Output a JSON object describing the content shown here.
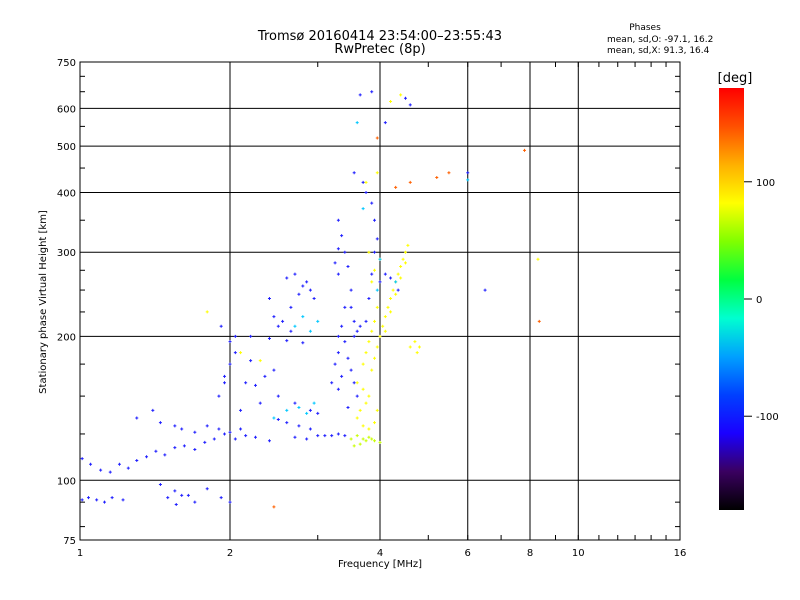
{
  "chart_data": {
    "type": "scatter",
    "title": "Tromsø 20160414 23:54:00–23:55:43",
    "subtitle": "RwPretec (8p)",
    "xlabel": "Frequency [MHz]",
    "ylabel": "Stationary phase Virtual Height [km]",
    "x_scale": "log",
    "y_scale": "log",
    "xlim": [
      1,
      16
    ],
    "ylim": [
      75,
      750
    ],
    "x_ticks": [
      1,
      2,
      4,
      6,
      8,
      10,
      16
    ],
    "x_tick_labels": [
      "1",
      "2",
      "4",
      "6",
      "8",
      "10",
      "16"
    ],
    "y_ticks": [
      75,
      100,
      200,
      300,
      400,
      500,
      600,
      750
    ],
    "y_tick_labels": [
      "75",
      "100",
      "200",
      "300",
      "400",
      "500",
      "600",
      "750"
    ],
    "grid": true,
    "legend": {
      "title": "Phases",
      "lines": [
        "mean, sd,O: -97.1, 16.2",
        "mean, sd,X:  91.3, 16.4"
      ],
      "placement": "top-right"
    },
    "colorbar": {
      "label": "[deg]",
      "range": [
        -180,
        180
      ],
      "ticks": [
        100,
        0,
        -100
      ],
      "tick_labels": [
        "100",
        "0",
        "-100"
      ],
      "stops": [
        "#000000",
        "#3a0060",
        "#1a00ff",
        "#0040ff",
        "#00a0ff",
        "#00ffd0",
        "#00ff40",
        "#80ff00",
        "#ffff00",
        "#ffb000",
        "#ff5000",
        "#ff0000"
      ]
    },
    "series": [
      {
        "color": "#2020ff",
        "points": [
          [
            1.01,
            91
          ],
          [
            1.04,
            92
          ],
          [
            1.08,
            91
          ],
          [
            1.12,
            90
          ],
          [
            1.16,
            92
          ],
          [
            1.22,
            91
          ],
          [
            1.5,
            92
          ],
          [
            1.56,
            89
          ],
          [
            1.6,
            93
          ],
          [
            1.7,
            90
          ],
          [
            1.01,
            111
          ],
          [
            1.05,
            108
          ],
          [
            1.1,
            105
          ],
          [
            1.15,
            104
          ],
          [
            1.2,
            108
          ],
          [
            1.25,
            106
          ],
          [
            1.3,
            110
          ],
          [
            1.36,
            112
          ],
          [
            1.42,
            115
          ],
          [
            1.48,
            113
          ],
          [
            1.55,
            117
          ],
          [
            1.62,
            118
          ],
          [
            1.7,
            116
          ],
          [
            1.78,
            120
          ],
          [
            1.86,
            122
          ],
          [
            1.95,
            125
          ],
          [
            2.05,
            122
          ],
          [
            2.15,
            124
          ],
          [
            2.25,
            123
          ],
          [
            2.4,
            121
          ],
          [
            1.3,
            135
          ],
          [
            1.4,
            140
          ],
          [
            1.45,
            132
          ],
          [
            1.55,
            130
          ],
          [
            1.6,
            128
          ],
          [
            1.7,
            126
          ],
          [
            1.8,
            130
          ],
          [
            1.9,
            128
          ],
          [
            2.0,
            126
          ],
          [
            2.1,
            128
          ],
          [
            1.9,
            150
          ],
          [
            1.95,
            165
          ],
          [
            2.0,
            175
          ],
          [
            2.05,
            185
          ],
          [
            2.0,
            195
          ],
          [
            1.92,
            210
          ],
          [
            1.95,
            160
          ],
          [
            2.1,
            140
          ],
          [
            2.15,
            160
          ],
          [
            2.2,
            178
          ],
          [
            2.05,
            200
          ],
          [
            2.2,
            200
          ],
          [
            2.4,
            198
          ],
          [
            2.6,
            196
          ],
          [
            2.8,
            194
          ],
          [
            2.5,
            150
          ],
          [
            2.7,
            145
          ],
          [
            2.9,
            140
          ],
          [
            3.0,
            138
          ],
          [
            2.5,
            134
          ],
          [
            2.6,
            132
          ],
          [
            2.75,
            130
          ],
          [
            2.9,
            128
          ],
          [
            2.55,
            215
          ],
          [
            2.65,
            230
          ],
          [
            2.75,
            245
          ],
          [
            2.85,
            260
          ],
          [
            2.9,
            250
          ],
          [
            2.45,
            220
          ],
          [
            2.4,
            240
          ],
          [
            2.6,
            265
          ],
          [
            2.7,
            270
          ],
          [
            2.8,
            255
          ],
          [
            2.95,
            240
          ],
          [
            2.5,
            210
          ],
          [
            2.65,
            205
          ],
          [
            2.25,
            158
          ],
          [
            2.35,
            165
          ],
          [
            2.45,
            170
          ],
          [
            2.3,
            145
          ],
          [
            3.1,
            124
          ],
          [
            3.2,
            124
          ],
          [
            3.3,
            125
          ],
          [
            3.4,
            124
          ],
          [
            3.0,
            124
          ],
          [
            2.85,
            122
          ],
          [
            2.7,
            123
          ],
          [
            3.2,
            160
          ],
          [
            3.3,
            155
          ],
          [
            3.35,
            165
          ],
          [
            3.25,
            175
          ],
          [
            3.3,
            185
          ],
          [
            3.3,
            200
          ],
          [
            3.35,
            210
          ],
          [
            3.4,
            230
          ],
          [
            3.3,
            270
          ],
          [
            3.25,
            285
          ],
          [
            3.3,
            305
          ],
          [
            3.35,
            325
          ],
          [
            3.3,
            350
          ],
          [
            3.4,
            300
          ],
          [
            3.45,
            280
          ],
          [
            3.5,
            250
          ],
          [
            3.5,
            230
          ],
          [
            3.55,
            215
          ],
          [
            3.4,
            195
          ],
          [
            3.45,
            180
          ],
          [
            3.5,
            170
          ],
          [
            3.55,
            160
          ],
          [
            3.6,
            150
          ],
          [
            3.45,
            142
          ],
          [
            3.55,
            200
          ],
          [
            3.6,
            205
          ],
          [
            3.65,
            210
          ],
          [
            3.75,
            215
          ],
          [
            3.8,
            240
          ],
          [
            3.85,
            270
          ],
          [
            3.9,
            300
          ],
          [
            3.95,
            320
          ],
          [
            3.9,
            350
          ],
          [
            3.85,
            380
          ],
          [
            3.75,
            400
          ],
          [
            3.7,
            420
          ],
          [
            3.55,
            440
          ],
          [
            3.65,
            640
          ],
          [
            3.85,
            650
          ],
          [
            4.1,
            560
          ],
          [
            4.5,
            630
          ],
          [
            4.6,
            610
          ],
          [
            4.0,
            260
          ],
          [
            4.1,
            270
          ],
          [
            4.2,
            265
          ],
          [
            4.35,
            250
          ],
          [
            1.45,
            98
          ],
          [
            1.55,
            95
          ],
          [
            1.65,
            93
          ],
          [
            1.8,
            96
          ],
          [
            1.92,
            92
          ],
          [
            2.0,
            90
          ],
          [
            6.0,
            440
          ],
          [
            6.5,
            250
          ]
        ]
      },
      {
        "color": "#ffff00",
        "points": [
          [
            3.85,
            170
          ],
          [
            3.9,
            180
          ],
          [
            3.95,
            190
          ],
          [
            4.0,
            200
          ],
          [
            4.05,
            210
          ],
          [
            4.1,
            220
          ],
          [
            4.15,
            230
          ],
          [
            4.2,
            240
          ],
          [
            4.25,
            250
          ],
          [
            4.3,
            260
          ],
          [
            4.35,
            270
          ],
          [
            4.4,
            280
          ],
          [
            4.45,
            290
          ],
          [
            4.5,
            300
          ],
          [
            4.55,
            310
          ],
          [
            4.5,
            285
          ],
          [
            4.4,
            265
          ],
          [
            4.3,
            245
          ],
          [
            4.2,
            225
          ],
          [
            4.1,
            205
          ],
          [
            3.6,
            160
          ],
          [
            3.7,
            155
          ],
          [
            3.8,
            150
          ],
          [
            3.75,
            145
          ],
          [
            3.65,
            140
          ],
          [
            3.6,
            135
          ],
          [
            3.7,
            130
          ],
          [
            3.8,
            128
          ],
          [
            3.9,
            132
          ],
          [
            3.95,
            140
          ],
          [
            3.7,
            175
          ],
          [
            3.75,
            185
          ],
          [
            3.8,
            195
          ],
          [
            3.85,
            205
          ],
          [
            3.9,
            215
          ],
          [
            3.95,
            230
          ],
          [
            3.85,
            260
          ],
          [
            3.9,
            275
          ],
          [
            4.0,
            290
          ],
          [
            3.8,
            300
          ],
          [
            4.6,
            190
          ],
          [
            4.7,
            195
          ],
          [
            4.75,
            185
          ],
          [
            4.8,
            190
          ],
          [
            4.2,
            620
          ],
          [
            4.4,
            640
          ],
          [
            3.75,
            420
          ],
          [
            3.95,
            440
          ],
          [
            8.3,
            290
          ],
          [
            1.8,
            225
          ],
          [
            2.1,
            185
          ],
          [
            2.3,
            178
          ]
        ]
      },
      {
        "color": "#c8ff00",
        "points": [
          [
            3.5,
            122
          ],
          [
            3.6,
            124
          ],
          [
            3.7,
            122
          ],
          [
            3.8,
            123
          ],
          [
            3.9,
            121
          ],
          [
            4.0,
            120
          ],
          [
            3.55,
            118
          ],
          [
            3.65,
            119
          ],
          [
            3.75,
            121
          ],
          [
            3.85,
            122
          ]
        ]
      },
      {
        "color": "#00c8ff",
        "points": [
          [
            2.45,
            135
          ],
          [
            2.6,
            140
          ],
          [
            2.75,
            142
          ],
          [
            2.85,
            138
          ],
          [
            2.95,
            145
          ],
          [
            2.7,
            210
          ],
          [
            2.8,
            220
          ],
          [
            2.9,
            205
          ],
          [
            3.0,
            215
          ],
          [
            3.6,
            560
          ],
          [
            3.7,
            370
          ],
          [
            4.3,
            260
          ],
          [
            6.0,
            425
          ],
          [
            4.0,
            290
          ],
          [
            3.95,
            250
          ]
        ]
      },
      {
        "color": "#ff6000",
        "points": [
          [
            3.95,
            520
          ],
          [
            4.3,
            410
          ],
          [
            4.6,
            420
          ],
          [
            5.2,
            430
          ],
          [
            5.5,
            440
          ],
          [
            7.8,
            490
          ],
          [
            8.35,
            215
          ],
          [
            2.45,
            88
          ]
        ]
      }
    ]
  }
}
